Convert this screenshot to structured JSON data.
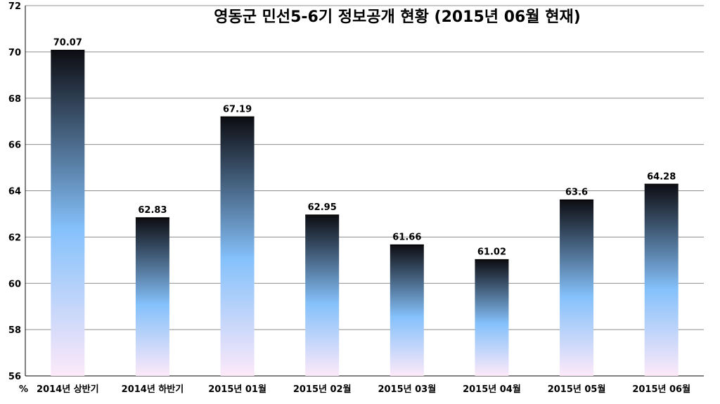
{
  "chart_data": {
    "type": "bar",
    "title": "영동군 민선5-6기 정보공개 현황 (2015년 06월 현재)",
    "unit_label": "%",
    "categories": [
      "2014년 상반기",
      "2014년 하반기",
      "2015년 01월",
      "2015년 02월",
      "2015년 03월",
      "2015년 04월",
      "2015년 05월",
      "2015년 06월"
    ],
    "values": [
      70.07,
      62.83,
      67.19,
      62.95,
      61.66,
      61.02,
      63.6,
      64.28
    ],
    "value_labels": [
      "70.07",
      "62.83",
      "67.19",
      "62.95",
      "61.66",
      "61.02",
      "63.6",
      "64.28"
    ],
    "ylim": [
      56,
      72
    ],
    "yticks": [
      56,
      58,
      60,
      62,
      64,
      66,
      68,
      70,
      72
    ],
    "grid": true,
    "legend": "none",
    "colors": {
      "bar_top": "#0d0d12",
      "bar_mid": "#85c1fb",
      "bar_bottom": "#fde9f9",
      "grid": "#8c8c8c"
    }
  }
}
